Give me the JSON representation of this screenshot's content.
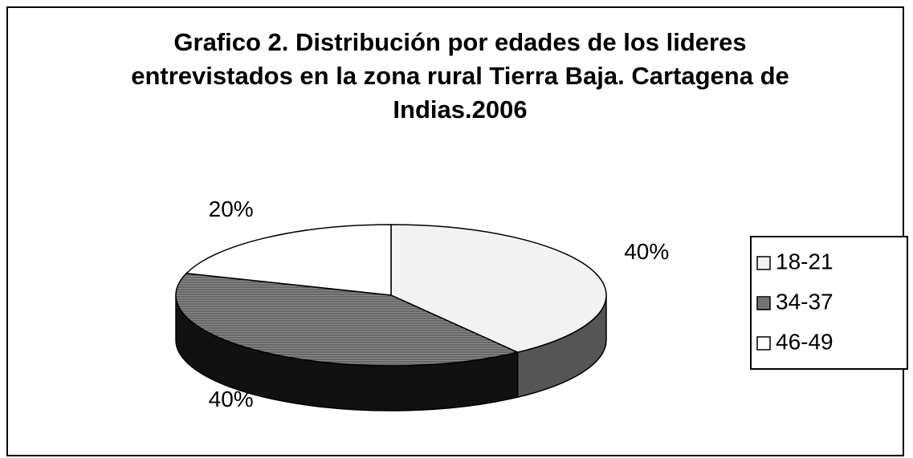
{
  "chart_data": {
    "type": "pie",
    "title": "Grafico 2. Distribución por edades de los lideres entrevistados en la zona rural Tierra Baja. Cartagena de Indias.2006",
    "categories": [
      "18-21",
      "34-37",
      "46-49"
    ],
    "values": [
      40,
      40,
      20
    ],
    "value_labels": [
      "40%",
      "40%",
      "20%"
    ],
    "colors": [
      "#f2f2f2",
      "#7a7a7a",
      "#ffffff"
    ],
    "legend": "right"
  }
}
